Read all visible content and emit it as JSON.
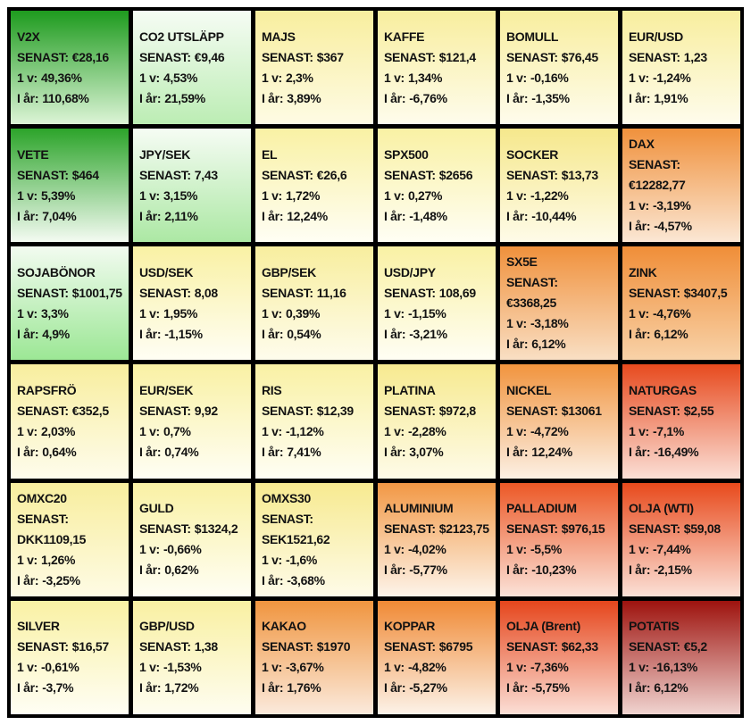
{
  "labels": {
    "senast": "SENAST:",
    "week": "1 v:",
    "ytd": "I år:"
  },
  "grid": {
    "columns": 6,
    "rows": 6,
    "border_color": "#000000",
    "text_color": "#121212"
  },
  "chart_data": {
    "type": "heatmap",
    "value_fields": [
      "senast",
      "week_change",
      "ytd_change"
    ],
    "color_scale": {
      "strong_positive": "#1E9B1E",
      "mild_positive": "#9CE795",
      "neutral": "#F9F1A4",
      "mild_negative": "#F0913C",
      "strong_negative": "#9E130E"
    },
    "tiles": [
      {
        "name": "V2X",
        "senast": "€28,16",
        "week_change": "49,36%",
        "ytd_change": "110,68%",
        "top_color": "#1E9B1E",
        "bottom_color": "#DCF4D6",
        "wrap": false
      },
      {
        "name": "CO2 UTSLÄPP",
        "senast": "€9,46",
        "week_change": "4,53%",
        "ytd_change": "21,59%",
        "top_color": "#F6FCF4",
        "bottom_color": "#BCEDB4",
        "wrap": false
      },
      {
        "name": "MAJS",
        "senast": "$367",
        "week_change": "2,3%",
        "ytd_change": "3,89%",
        "top_color": "#F8EE9E",
        "bottom_color": "#FEFBE4",
        "wrap": false
      },
      {
        "name": "KAFFE",
        "senast": "$121,4",
        "week_change": "1,34%",
        "ytd_change": "-6,76%",
        "top_color": "#F8EE9E",
        "bottom_color": "#FEFCEC",
        "wrap": false
      },
      {
        "name": "BOMULL",
        "senast": "$76,45",
        "week_change": "-0,16%",
        "ytd_change": "-1,35%",
        "top_color": "#F8EE9E",
        "bottom_color": "#FEFCEC",
        "wrap": false
      },
      {
        "name": "EUR/USD",
        "senast": "1,23",
        "week_change": "-1,24%",
        "ytd_change": "1,91%",
        "top_color": "#F8EE9E",
        "bottom_color": "#FEFCEC",
        "wrap": false
      },
      {
        "name": "VETE",
        "senast": "$464",
        "week_change": "5,39%",
        "ytd_change": "7,04%",
        "top_color": "#2CA42A",
        "bottom_color": "#F4FBF2",
        "wrap": false
      },
      {
        "name": "JPY/SEK",
        "senast": "7,43",
        "week_change": "3,15%",
        "ytd_change": "2,11%",
        "top_color": "#F6FCF4",
        "bottom_color": "#ACE8A4",
        "wrap": false
      },
      {
        "name": "EL",
        "senast": "€26,6",
        "week_change": "1,72%",
        "ytd_change": "12,24%",
        "top_color": "#F9F1A4",
        "bottom_color": "#FFFEF4",
        "wrap": false
      },
      {
        "name": "SPX500",
        "senast": "$2656",
        "week_change": "0,27%",
        "ytd_change": "-1,48%",
        "top_color": "#F9F1A4",
        "bottom_color": "#FFFEF4",
        "wrap": false
      },
      {
        "name": "SOCKER",
        "senast": "$13,73",
        "week_change": "-1,22%",
        "ytd_change": "-10,44%",
        "top_color": "#F6E88C",
        "bottom_color": "#FEFBE8",
        "wrap": false
      },
      {
        "name": "DAX",
        "senast": "€12282,77",
        "week_change": "-3,19%",
        "ytd_change": "-4,57%",
        "top_color": "#F0913C",
        "bottom_color": "#FBE7D4",
        "wrap": true
      },
      {
        "name": "SOJABÖNOR",
        "senast": "$1001,75",
        "week_change": "3,3%",
        "ytd_change": "4,9%",
        "top_color": "#F2FBF0",
        "bottom_color": "#9CE795",
        "wrap": false
      },
      {
        "name": "USD/SEK",
        "senast": "8,08",
        "week_change": "1,95%",
        "ytd_change": "-1,15%",
        "top_color": "#F9F1A4",
        "bottom_color": "#FFFEF4",
        "wrap": false
      },
      {
        "name": "GBP/SEK",
        "senast": "11,16",
        "week_change": "0,39%",
        "ytd_change": "0,54%",
        "top_color": "#F8EE9E",
        "bottom_color": "#FEFCEC",
        "wrap": false
      },
      {
        "name": "USD/JPY",
        "senast": "108,69",
        "week_change": "-1,15%",
        "ytd_change": "-3,21%",
        "top_color": "#F9F1A4",
        "bottom_color": "#FFFEF4",
        "wrap": false
      },
      {
        "name": "SX5E",
        "senast": "€3368,25",
        "week_change": "-3,18%",
        "ytd_change": "6,12%",
        "top_color": "#F0913C",
        "bottom_color": "#F9DFC4",
        "wrap": true
      },
      {
        "name": "ZINK",
        "senast": "$3407,5",
        "week_change": "-4,76%",
        "ytd_change": "6,12%",
        "top_color": "#F08E38",
        "bottom_color": "#F8D2A8",
        "wrap": false
      },
      {
        "name": "RAPSFRÖ",
        "senast": "€352,5",
        "week_change": "2,03%",
        "ytd_change": "0,64%",
        "top_color": "#F8EE9E",
        "bottom_color": "#FEFCEC",
        "wrap": false
      },
      {
        "name": "EUR/SEK",
        "senast": "9,92",
        "week_change": "0,7%",
        "ytd_change": "0,74%",
        "top_color": "#F9F1A4",
        "bottom_color": "#FFFEF4",
        "wrap": false
      },
      {
        "name": "RIS",
        "senast": "$12,39",
        "week_change": "-1,12%",
        "ytd_change": "7,41%",
        "top_color": "#F9F1A4",
        "bottom_color": "#FFFEF4",
        "wrap": false
      },
      {
        "name": "PLATINA",
        "senast": "$972,8",
        "week_change": "-2,28%",
        "ytd_change": "3,07%",
        "top_color": "#F7EA90",
        "bottom_color": "#FEFBE8",
        "wrap": false
      },
      {
        "name": "NICKEL",
        "senast": "$13061",
        "week_change": "-4,72%",
        "ytd_change": "12,24%",
        "top_color": "#F1943E",
        "bottom_color": "#FCF0E4",
        "wrap": false
      },
      {
        "name": "NATURGAS",
        "senast": "$2,55",
        "week_change": "-7,1%",
        "ytd_change": "-16,49%",
        "top_color": "#E74A1E",
        "bottom_color": "#FBDFD6",
        "wrap": false
      },
      {
        "name": "OMXC20",
        "senast": "DKK1109,15",
        "week_change": "1,26%",
        "ytd_change": "-3,25%",
        "top_color": "#F8EE9E",
        "bottom_color": "#FEFBE4",
        "wrap": true
      },
      {
        "name": "GULD",
        "senast": "$1324,2",
        "week_change": "-0,66%",
        "ytd_change": "0,62%",
        "top_color": "#F9F1A4",
        "bottom_color": "#FFFEF4",
        "wrap": false
      },
      {
        "name": "OMXS30",
        "senast": "SEK1521,62",
        "week_change": "-1,6%",
        "ytd_change": "-3,68%",
        "top_color": "#F7EA90",
        "bottom_color": "#FEFBE8",
        "wrap": true
      },
      {
        "name": "ALUMINIUM",
        "senast": "$2123,75",
        "week_change": "-4,02%",
        "ytd_change": "-5,77%",
        "top_color": "#F29845",
        "bottom_color": "#FDF4EA",
        "wrap": false
      },
      {
        "name": "PALLADIUM",
        "senast": "$976,15",
        "week_change": "-5,5%",
        "ytd_change": "-10,23%",
        "top_color": "#EC5826",
        "bottom_color": "#FBE2D8",
        "wrap": false
      },
      {
        "name": "OLJA (WTI)",
        "senast": "$59,08",
        "week_change": "-7,44%",
        "ytd_change": "-2,15%",
        "top_color": "#E84A1C",
        "bottom_color": "#FBE0D6",
        "wrap": false
      },
      {
        "name": "SILVER",
        "senast": "$16,57",
        "week_change": "-0,61%",
        "ytd_change": "-3,7%",
        "top_color": "#F9F1A4",
        "bottom_color": "#FFFEF4",
        "wrap": false
      },
      {
        "name": "GBP/USD",
        "senast": "1,38",
        "week_change": "-1,53%",
        "ytd_change": "1,72%",
        "top_color": "#F9F0A2",
        "bottom_color": "#FEFDF0",
        "wrap": false
      },
      {
        "name": "KAKAO",
        "senast": "$1970",
        "week_change": "-3,67%",
        "ytd_change": "1,76%",
        "top_color": "#F0953F",
        "bottom_color": "#FBEADC",
        "wrap": false
      },
      {
        "name": "KOPPAR",
        "senast": "$6795",
        "week_change": "-4,82%",
        "ytd_change": "-5,27%",
        "top_color": "#F08A35",
        "bottom_color": "#FCF2E8",
        "wrap": false
      },
      {
        "name": "OLJA (Brent)",
        "senast": "$62,33",
        "week_change": "-7,36%",
        "ytd_change": "-5,75%",
        "top_color": "#E6461C",
        "bottom_color": "#FBDFD6",
        "wrap": false
      },
      {
        "name": "POTATIS",
        "senast": "€5,2",
        "week_change": "-16,13%",
        "ytd_change": "6,12%",
        "top_color": "#9E130E",
        "bottom_color": "#F0D4D0",
        "wrap": false
      }
    ]
  }
}
